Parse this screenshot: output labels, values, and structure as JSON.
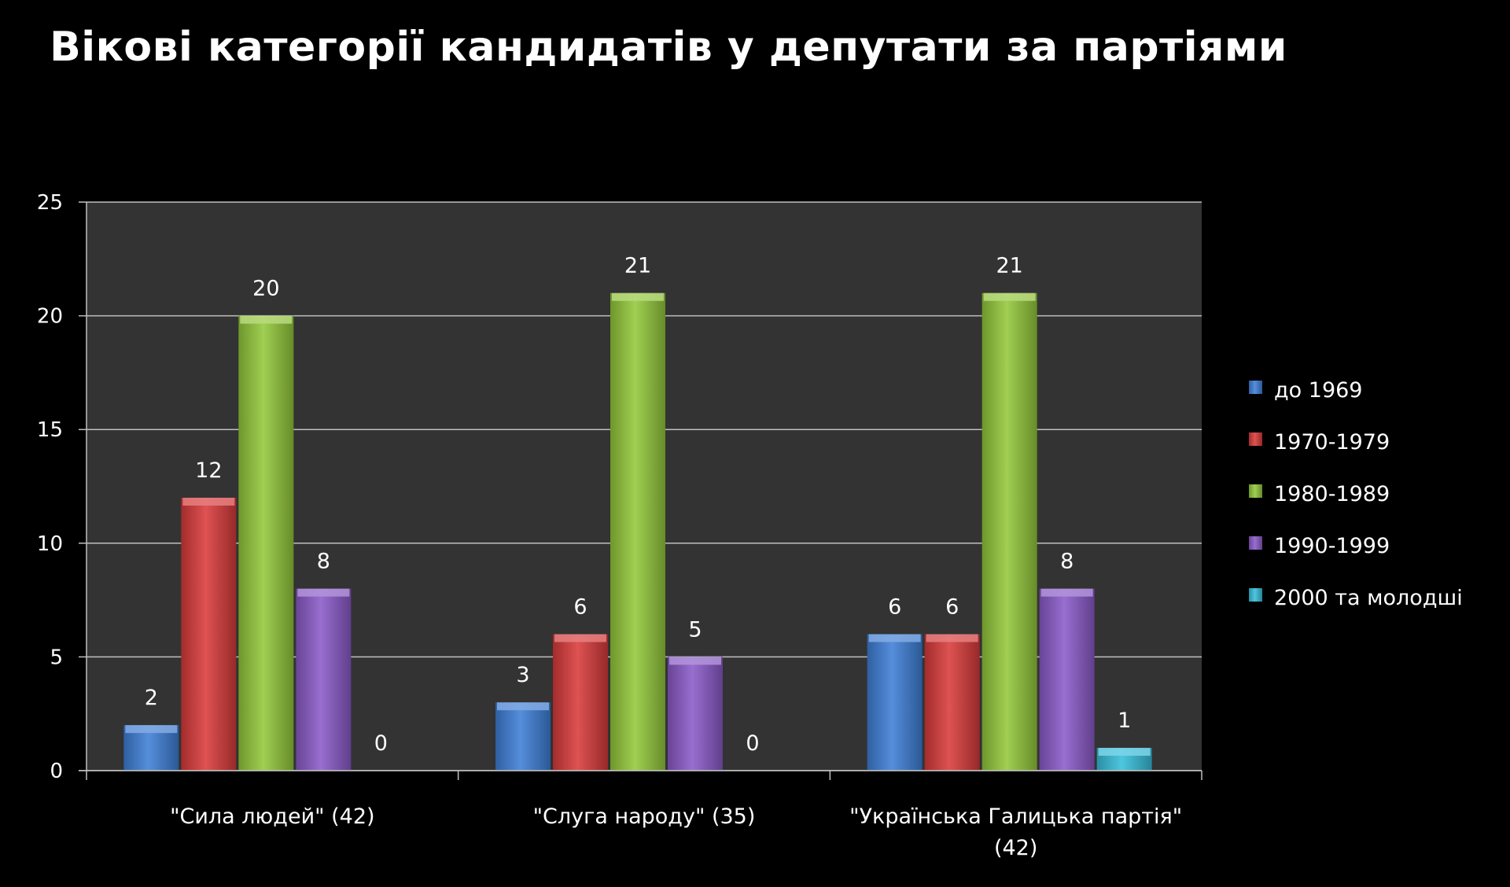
{
  "title": "Вікові категорії кандидатів у депутати за партіями",
  "colors": {
    "background": "#000000",
    "plot_area": "#333333",
    "gridline": "#bfbfbf",
    "text": "#ffffff"
  },
  "chart_data": {
    "type": "bar",
    "title": "Вікові категорії кандидатів у депутати за партіями",
    "xlabel": "",
    "ylabel": "",
    "ylim": [
      0,
      25
    ],
    "yticks": [
      0,
      5,
      10,
      15,
      20,
      25
    ],
    "grid": true,
    "legend_position": "right",
    "categories": [
      [
        "\"Сила людей\"  (42)"
      ],
      [
        "\"Слуга народу\"  (35)"
      ],
      [
        "\"Українська Галицька партія\"",
        "(42)"
      ]
    ],
    "series": [
      {
        "name": "до   1969",
        "color": "#3e7fd6",
        "values": [
          2,
          3,
          6
        ]
      },
      {
        "name": "1970-1979",
        "color": "#d93a3a",
        "values": [
          12,
          6,
          6
        ]
      },
      {
        "name": "1980-1989",
        "color": "#93c83a",
        "values": [
          20,
          21,
          21
        ]
      },
      {
        "name": "1990-1999",
        "color": "#8a5ac8",
        "values": [
          8,
          5,
          8
        ]
      },
      {
        "name": "2000 та молодші",
        "color": "#36bedb",
        "values": [
          0,
          0,
          1
        ]
      }
    ]
  }
}
